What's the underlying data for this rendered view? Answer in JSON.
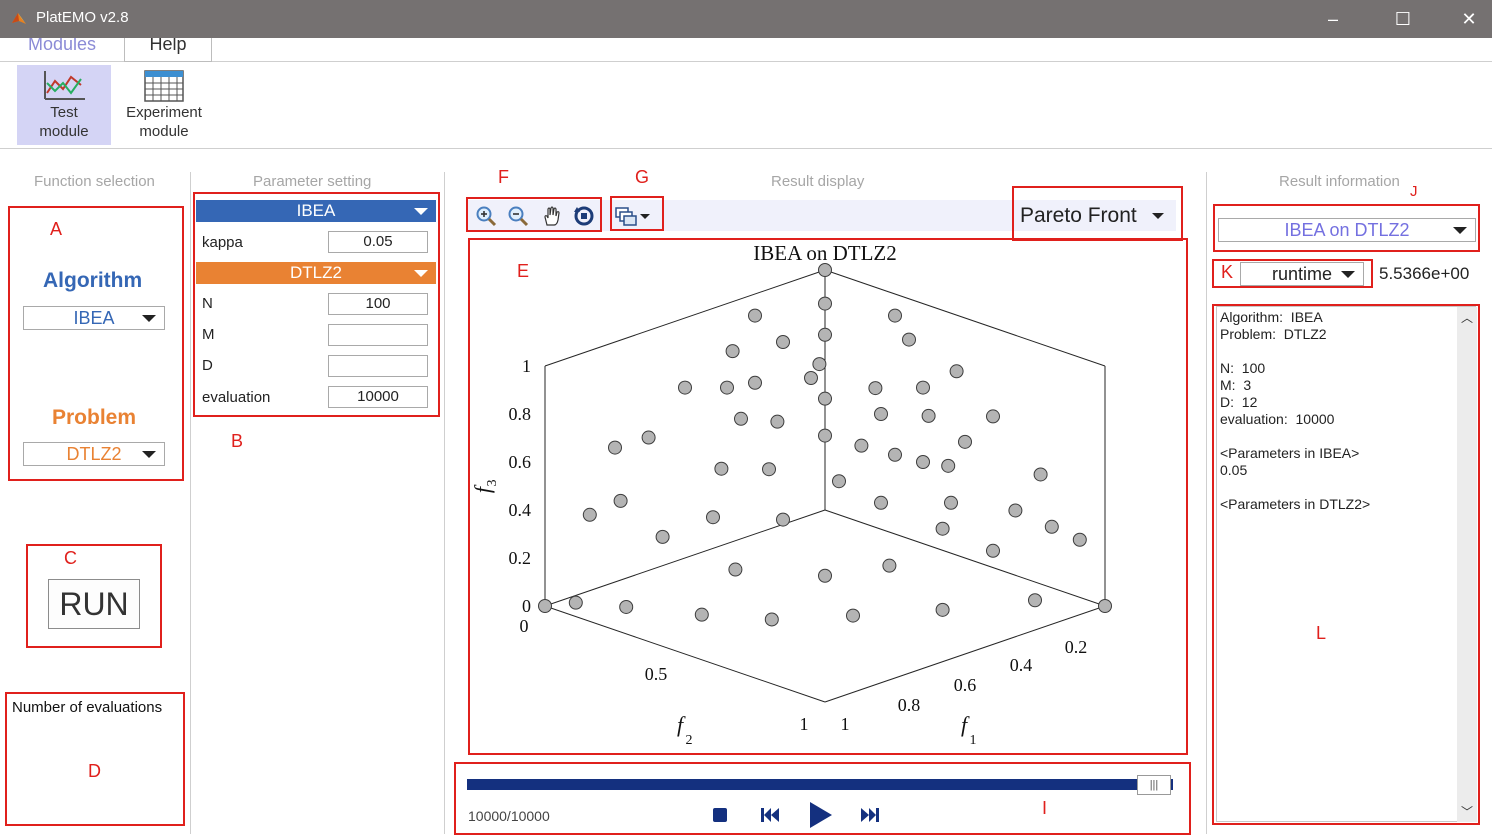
{
  "window": {
    "title": "PlatEMO v2.8"
  },
  "menu": {
    "tabs": [
      "Modules",
      "Help"
    ]
  },
  "ribbon": {
    "test_module": [
      "Test",
      "module"
    ],
    "experiment_module": [
      "Experiment",
      "module"
    ]
  },
  "panels": {
    "function_selection": "Function selection",
    "parameter_setting": "Parameter setting",
    "result_display": "Result display",
    "result_information": "Result information"
  },
  "function_selection": {
    "algorithm_heading": "Algorithm",
    "algorithm_value": "IBEA",
    "problem_heading": "Problem",
    "problem_value": "DTLZ2",
    "run_label": "RUN",
    "evaluations_label": "Number of evaluations"
  },
  "parameters": {
    "algorithm": {
      "name": "IBEA",
      "fields": [
        {
          "label": "kappa",
          "value": "0.05"
        }
      ]
    },
    "problem": {
      "name": "DTLZ2",
      "fields": [
        {
          "label": "N",
          "value": "100"
        },
        {
          "label": "M",
          "value": ""
        },
        {
          "label": "D",
          "value": ""
        },
        {
          "label": "evaluation",
          "value": "10000"
        }
      ]
    }
  },
  "display": {
    "plot_type": "Pareto Front"
  },
  "chart_data": {
    "type": "scatter",
    "title": "IBEA on DTLZ2",
    "axes": {
      "f1": {
        "label": "f1",
        "ticks": [
          "0.2",
          "0.4",
          "0.6",
          "0.8",
          "1"
        ],
        "range": [
          0,
          1
        ]
      },
      "f2": {
        "label": "f2",
        "ticks": [
          "0",
          "0.5",
          "1"
        ],
        "range": [
          0,
          1
        ]
      },
      "f3": {
        "label": "f3",
        "ticks": [
          "0",
          "0.2",
          "0.4",
          "0.6",
          "0.8",
          "1"
        ],
        "range": [
          0,
          1
        ]
      }
    },
    "grid": false,
    "marker_color": "#b4b4b4",
    "points_note_free": true,
    "points": [
      [
        1,
        0,
        0
      ],
      [
        0,
        1,
        0
      ],
      [
        0,
        0,
        1
      ],
      [
        0.1,
        0.99,
        0.05
      ],
      [
        0.25,
        0.96,
        0.08
      ],
      [
        0.45,
        0.89,
        0.1
      ],
      [
        0.6,
        0.79,
        0.1
      ],
      [
        0.75,
        0.65,
        0.12
      ],
      [
        0.88,
        0.46,
        0.12
      ],
      [
        0.97,
        0.22,
        0.1
      ],
      [
        0.96,
        0.05,
        0.28
      ],
      [
        0.88,
        0.2,
        0.43
      ],
      [
        0.74,
        0.3,
        0.6
      ],
      [
        0.55,
        0.35,
        0.76
      ],
      [
        0.35,
        0.4,
        0.85
      ],
      [
        0.2,
        0.55,
        0.81
      ],
      [
        0.12,
        0.75,
        0.65
      ],
      [
        0.08,
        0.92,
        0.38
      ],
      [
        0.05,
        0.8,
        0.6
      ],
      [
        0.1,
        0.6,
        0.79
      ],
      [
        0.25,
        0.25,
        0.93
      ],
      [
        0.4,
        0.1,
        0.91
      ],
      [
        0.55,
        0.08,
        0.83
      ],
      [
        0.7,
        0.1,
        0.71
      ],
      [
        0.85,
        0.08,
        0.52
      ],
      [
        0.93,
        0.12,
        0.35
      ],
      [
        0.5,
        0.5,
        0.71
      ],
      [
        0.6,
        0.55,
        0.58
      ],
      [
        0.45,
        0.65,
        0.61
      ],
      [
        0.35,
        0.72,
        0.6
      ],
      [
        0.65,
        0.4,
        0.65
      ],
      [
        0.7,
        0.5,
        0.51
      ],
      [
        0.55,
        0.7,
        0.46
      ],
      [
        0.4,
        0.8,
        0.45
      ],
      [
        0.8,
        0.35,
        0.49
      ],
      [
        0.3,
        0.6,
        0.74
      ],
      [
        0.2,
        0.35,
        0.92
      ],
      [
        0.05,
        0.3,
        0.95
      ],
      [
        0.15,
        0.15,
        0.98
      ],
      [
        0.3,
        0.05,
        0.95
      ],
      [
        0.62,
        0.25,
        0.74
      ],
      [
        0.48,
        0.3,
        0.82
      ],
      [
        0.78,
        0.55,
        0.3
      ],
      [
        0.82,
        0.4,
        0.41
      ],
      [
        0.68,
        0.68,
        0.27
      ],
      [
        0.3,
        0.88,
        0.36
      ],
      [
        0.5,
        0.82,
        0.28
      ],
      [
        0.15,
        0.88,
        0.45
      ],
      [
        0.9,
        0.3,
        0.31
      ],
      [
        0.38,
        0.55,
        0.74
      ],
      [
        0.55,
        0.2,
        0.81
      ],
      [
        0.72,
        0.22,
        0.66
      ],
      [
        0.25,
        0.5,
        0.83
      ],
      [
        0.12,
        0.45,
        0.89
      ],
      [
        0.42,
        0.42,
        0.8
      ],
      [
        0.58,
        0.45,
        0.68
      ],
      [
        0.33,
        0.35,
        0.88
      ],
      [
        0.7,
        0.35,
        0.62
      ]
    ]
  },
  "playback": {
    "progress": 1.0,
    "counter": "10000/10000",
    "thumb_label": "|||"
  },
  "result_info": {
    "selector": "IBEA on DTLZ2",
    "metric": "runtime",
    "metric_value": "5.5366e+00",
    "lines": [
      "Algorithm:  IBEA",
      "Problem:  DTLZ2",
      "",
      "N:  100",
      "M:  3",
      "D:  12",
      "evaluation:  10000",
      "",
      "<Parameters in IBEA>",
      "0.05",
      "",
      "<Parameters in DTLZ2>"
    ]
  },
  "annotations": {
    "A": "A",
    "B": "B",
    "C": "C",
    "D": "D",
    "E": "E",
    "F": "F",
    "G": "G",
    "I": "I",
    "J": "J",
    "K": "K",
    "L": "L"
  },
  "colors": {
    "algorithm": "#3567b5",
    "problem": "#e98233",
    "annotation": "#e0201c",
    "progress": "#14307f",
    "titlebar": "#757171"
  }
}
